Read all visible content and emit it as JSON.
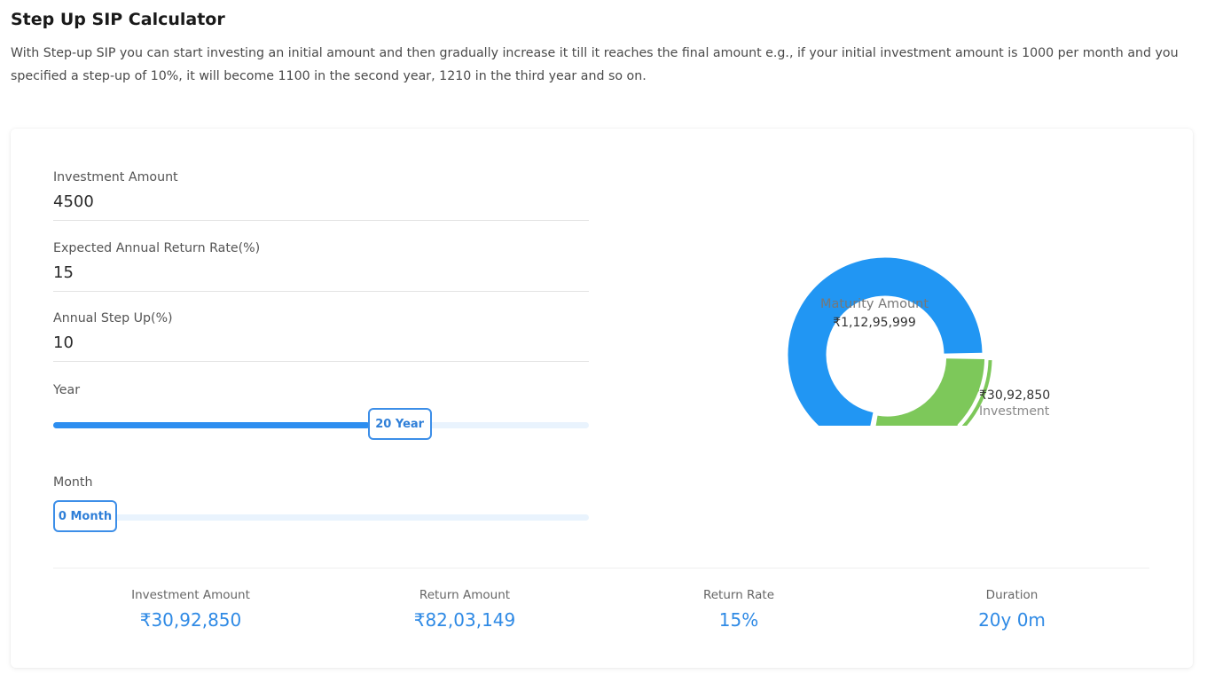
{
  "page": {
    "title": "Step Up SIP Calculator",
    "description": "With Step-up SIP you can start investing an initial amount and then gradually increase it till it reaches the final amount e.g., if your initial investment amount is 1000 per month and you specified a step-up of 10%, it will become 1100 in the second year, 1210 in the third year and so on."
  },
  "form": {
    "investment_amount": {
      "label": "Investment Amount",
      "value": "4500"
    },
    "return_rate": {
      "label": "Expected Annual Return Rate(%)",
      "value": "15"
    },
    "step_up": {
      "label": "Annual Step Up(%)",
      "value": "10"
    },
    "year": {
      "label": "Year",
      "thumb_label": "20 Year",
      "value": 20,
      "min": 0,
      "max": 30
    },
    "month": {
      "label": "Month",
      "thumb_label": "0 Month",
      "value": 0,
      "min": 0,
      "max": 11
    }
  },
  "chart": {
    "center_label": "Maturity Amount",
    "center_value": "₹1,12,95,999",
    "callout_value": "₹30,92,850",
    "callout_label": "Investment",
    "colors": {
      "returns": "#2196f3",
      "investment": "#7dc85a"
    }
  },
  "chart_data": {
    "type": "pie",
    "labels": [
      "Return Amount",
      "Investment"
    ],
    "values": [
      8203149,
      3092850
    ],
    "donut": true
  },
  "summary": {
    "investment_amount": {
      "label": "Investment Amount",
      "value": "₹30,92,850"
    },
    "return_amount": {
      "label": "Return Amount",
      "value": "₹82,03,149"
    },
    "return_rate": {
      "label": "Return Rate",
      "value": "15%"
    },
    "duration": {
      "label": "Duration",
      "value": "20y 0m"
    }
  }
}
